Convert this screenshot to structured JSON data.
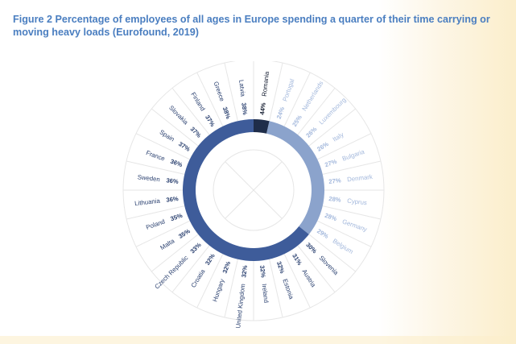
{
  "title": "Figure 2 Percentage of employees of all ages in Europe spending a quarter of their time carrying or moving heavy loads (Eurofound, 2019)",
  "chart_data": {
    "type": "radial-bar",
    "title": "Figure 2 Percentage of employees of all ages in Europe spending a quarter of their time carrying or moving heavy loads (Eurofound, 2019)",
    "categories": [
      "Romania",
      "Portugal",
      "Netherlands",
      "Luxembourg",
      "Italy",
      "Bulgaria",
      "Denmark",
      "Cyprus",
      "Germany",
      "Belgium",
      "Slovenia",
      "Austria",
      "Estonia",
      "Ireland",
      "United Kingdom",
      "Hungary",
      "Croatia",
      "Czech Republic",
      "Malta",
      "Poland",
      "Lithuania",
      "Sweden",
      "France",
      "Spain",
      "Slovakia",
      "Finland",
      "Greece",
      "Latvia"
    ],
    "values": [
      44,
      24,
      25,
      26,
      26,
      27,
      27,
      28,
      28,
      29,
      30,
      31,
      32,
      32,
      32,
      32,
      32,
      33,
      35,
      35,
      36,
      36,
      36,
      37,
      37,
      37,
      38,
      38
    ],
    "value_labels": [
      "44%",
      "24%",
      "25%",
      "26%",
      "26%",
      "27%",
      "27%",
      "28%",
      "28%",
      "29%",
      "30%",
      "31%",
      "32%",
      "32%",
      "32%",
      "32%",
      "32%",
      "33%",
      "35%",
      "35%",
      "36%",
      "36%",
      "36%",
      "37%",
      "37%",
      "37%",
      "38%",
      "38%"
    ],
    "segments": [
      {
        "start_category": "Portugal",
        "end_category": "Belgium",
        "color": "#8ba3cc"
      },
      {
        "start_category": "Slovenia",
        "end_category": "Latvia",
        "color": "#3e5c9a"
      },
      {
        "start_category": "Romania",
        "end_category": "Romania",
        "color": "#1f2d4a"
      }
    ],
    "colors": {
      "light_labels": "#a3b8dc",
      "dark_labels": "#2b4170",
      "romania_label": "#111a2e",
      "grid": "#e6e6e6"
    }
  }
}
